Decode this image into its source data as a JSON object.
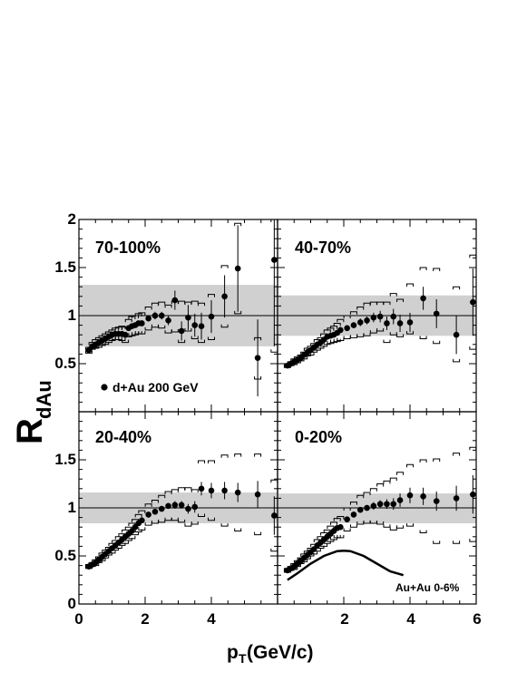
{
  "figure": {
    "ylabel_main": "R",
    "ylabel_sub": "dAu",
    "xlabel_main": "p",
    "xlabel_sub": "T",
    "xlabel_units": " (GeV/c)"
  },
  "legend": {
    "entry": "d+Au  200 GeV"
  },
  "annotation": {
    "auau": "Au+Au 0-6%"
  },
  "axes": {
    "left_top_ticks": [
      "0.5",
      "1",
      "1.5",
      "2"
    ],
    "left_bottom_ticks": [
      "0",
      "0.5",
      "1",
      "1.5"
    ],
    "x_left_ticks": [
      "0",
      "2",
      "4"
    ],
    "x_right_ticks": [
      "2",
      "4",
      "6"
    ]
  },
  "chart_data": [
    {
      "type": "scatter",
      "panel": "top-left",
      "label": "70-100%",
      "xlim": [
        0,
        6
      ],
      "ylim": [
        0,
        2
      ],
      "band": [
        0.68,
        1.32
      ],
      "reference_y": 1,
      "x": [
        0.3,
        0.4,
        0.5,
        0.6,
        0.7,
        0.8,
        0.9,
        1.0,
        1.1,
        1.2,
        1.3,
        1.4,
        1.5,
        1.6,
        1.7,
        1.8,
        1.9,
        2.1,
        2.3,
        2.5,
        2.7,
        2.9,
        3.1,
        3.3,
        3.5,
        3.7,
        4.0,
        4.4,
        4.8,
        5.4,
        5.9
      ],
      "y": [
        0.64,
        0.68,
        0.7,
        0.72,
        0.74,
        0.76,
        0.78,
        0.8,
        0.81,
        0.81,
        0.81,
        0.8,
        0.87,
        0.89,
        0.9,
        0.92,
        0.92,
        0.97,
        1.0,
        1.0,
        0.95,
        1.16,
        0.84,
        0.98,
        0.9,
        0.89,
        0.99,
        1.2,
        1.49,
        0.56,
        1.58
      ],
      "err": [
        0.01,
        0.01,
        0.01,
        0.01,
        0.01,
        0.01,
        0.01,
        0.01,
        0.01,
        0.02,
        0.02,
        0.02,
        0.02,
        0.02,
        0.02,
        0.02,
        0.03,
        0.03,
        0.04,
        0.04,
        0.05,
        0.1,
        0.1,
        0.13,
        0.12,
        0.14,
        0.17,
        0.22,
        0.45,
        0.4,
        0.9
      ],
      "sys_high": [
        0.67,
        0.72,
        0.75,
        0.77,
        0.79,
        0.81,
        0.83,
        0.85,
        0.87,
        0.88,
        0.89,
        0.88,
        0.96,
        0.99,
        1.0,
        1.02,
        1.03,
        1.09,
        1.13,
        1.14,
        1.11,
        1.15,
        1.15,
        1.14,
        1.15,
        1.13,
        1.22,
        1.52,
        1.96,
        0.77,
        2.0
      ],
      "sys_low": [
        0.61,
        0.65,
        0.66,
        0.67,
        0.69,
        0.7,
        0.72,
        0.74,
        0.75,
        0.75,
        0.74,
        0.72,
        0.78,
        0.79,
        0.8,
        0.81,
        0.81,
        0.85,
        0.88,
        0.87,
        0.82,
        0.83,
        0.72,
        0.84,
        0.76,
        0.72,
        0.75,
        0.88,
        1.02,
        0.34,
        0.62
      ]
    },
    {
      "type": "scatter",
      "panel": "top-right",
      "label": "40-70%",
      "xlim": [
        0,
        6
      ],
      "ylim": [
        0,
        2
      ],
      "band": [
        0.79,
        1.21
      ],
      "reference_y": 1,
      "x": [
        0.3,
        0.4,
        0.5,
        0.6,
        0.7,
        0.8,
        0.9,
        1.0,
        1.1,
        1.2,
        1.3,
        1.4,
        1.5,
        1.6,
        1.7,
        1.8,
        1.9,
        2.1,
        2.3,
        2.5,
        2.7,
        2.9,
        3.1,
        3.3,
        3.5,
        3.7,
        4.0,
        4.4,
        4.8,
        5.4,
        5.9
      ],
      "y": [
        0.48,
        0.5,
        0.52,
        0.54,
        0.56,
        0.59,
        0.62,
        0.64,
        0.67,
        0.7,
        0.72,
        0.75,
        0.78,
        0.79,
        0.8,
        0.82,
        0.85,
        0.87,
        0.9,
        0.93,
        0.95,
        0.98,
        0.99,
        0.92,
        0.99,
        0.92,
        0.93,
        1.18,
        1.02,
        0.8,
        1.14
      ],
      "err": [
        0.01,
        0.01,
        0.01,
        0.01,
        0.01,
        0.01,
        0.01,
        0.01,
        0.01,
        0.01,
        0.02,
        0.02,
        0.02,
        0.02,
        0.02,
        0.02,
        0.03,
        0.03,
        0.03,
        0.04,
        0.04,
        0.05,
        0.06,
        0.07,
        0.08,
        0.09,
        0.1,
        0.12,
        0.15,
        0.2,
        0.35
      ],
      "sys_high": [
        0.5,
        0.52,
        0.55,
        0.57,
        0.59,
        0.62,
        0.66,
        0.68,
        0.71,
        0.75,
        0.77,
        0.81,
        0.85,
        0.87,
        0.89,
        0.92,
        0.96,
        1.0,
        1.04,
        1.09,
        1.13,
        1.14,
        1.14,
        1.14,
        1.23,
        1.17,
        1.33,
        1.5,
        1.49,
        1.3,
        1.63
      ],
      "sys_low": [
        0.46,
        0.48,
        0.49,
        0.51,
        0.53,
        0.55,
        0.58,
        0.59,
        0.62,
        0.64,
        0.66,
        0.68,
        0.7,
        0.71,
        0.72,
        0.73,
        0.74,
        0.76,
        0.77,
        0.78,
        0.79,
        0.82,
        0.84,
        0.72,
        0.8,
        0.78,
        0.81,
        0.76,
        0.71,
        0.52,
        0.65
      ]
    },
    {
      "type": "scatter",
      "panel": "bottom-left",
      "label": "20-40%",
      "xlim": [
        0,
        6
      ],
      "ylim": [
        0,
        2
      ],
      "band": [
        0.84,
        1.16
      ],
      "reference_y": 1,
      "x": [
        0.3,
        0.4,
        0.5,
        0.6,
        0.7,
        0.8,
        0.9,
        1.0,
        1.1,
        1.2,
        1.3,
        1.4,
        1.5,
        1.6,
        1.7,
        1.8,
        1.9,
        2.1,
        2.3,
        2.5,
        2.7,
        2.9,
        3.1,
        3.3,
        3.5,
        3.7,
        4.0,
        4.4,
        4.8,
        5.4,
        5.9
      ],
      "y": [
        0.39,
        0.41,
        0.43,
        0.46,
        0.49,
        0.52,
        0.55,
        0.58,
        0.61,
        0.64,
        0.67,
        0.7,
        0.73,
        0.76,
        0.8,
        0.84,
        0.87,
        0.93,
        0.96,
        0.99,
        1.02,
        1.03,
        1.03,
        0.99,
        1.01,
        1.2,
        1.18,
        1.18,
        1.16,
        1.14,
        0.92
      ],
      "err": [
        0.01,
        0.01,
        0.01,
        0.01,
        0.01,
        0.01,
        0.01,
        0.01,
        0.01,
        0.01,
        0.01,
        0.02,
        0.02,
        0.02,
        0.02,
        0.02,
        0.02,
        0.02,
        0.03,
        0.03,
        0.03,
        0.04,
        0.04,
        0.05,
        0.06,
        0.07,
        0.08,
        0.09,
        0.1,
        0.14,
        0.2
      ],
      "sys_high": [
        0.41,
        0.43,
        0.46,
        0.49,
        0.53,
        0.56,
        0.59,
        0.63,
        0.66,
        0.7,
        0.73,
        0.77,
        0.8,
        0.84,
        0.88,
        0.93,
        0.97,
        1.04,
        1.08,
        1.13,
        1.17,
        1.19,
        1.21,
        1.21,
        1.19,
        1.49,
        1.49,
        1.55,
        1.56,
        1.56,
        1.29
      ],
      "sys_low": [
        0.37,
        0.39,
        0.4,
        0.43,
        0.45,
        0.48,
        0.51,
        0.53,
        0.56,
        0.58,
        0.61,
        0.63,
        0.66,
        0.68,
        0.72,
        0.75,
        0.77,
        0.82,
        0.84,
        0.85,
        0.87,
        0.87,
        0.85,
        0.81,
        0.83,
        0.91,
        0.87,
        0.81,
        0.76,
        0.72,
        0.55
      ]
    },
    {
      "type": "scatter",
      "panel": "bottom-right",
      "label": "0-20%",
      "xlim": [
        0,
        6
      ],
      "ylim": [
        0,
        2
      ],
      "band": [
        0.84,
        1.15
      ],
      "reference_y": 1,
      "x": [
        0.3,
        0.4,
        0.5,
        0.6,
        0.7,
        0.8,
        0.9,
        1.0,
        1.1,
        1.2,
        1.3,
        1.4,
        1.5,
        1.6,
        1.7,
        1.8,
        1.9,
        2.1,
        2.3,
        2.5,
        2.7,
        2.9,
        3.1,
        3.3,
        3.5,
        3.7,
        4.0,
        4.4,
        4.8,
        5.4,
        5.9
      ],
      "y": [
        0.35,
        0.37,
        0.39,
        0.42,
        0.45,
        0.48,
        0.51,
        0.54,
        0.57,
        0.61,
        0.64,
        0.67,
        0.7,
        0.73,
        0.76,
        0.79,
        0.8,
        0.88,
        0.93,
        0.98,
        1.0,
        1.02,
        1.04,
        1.04,
        1.04,
        1.08,
        1.13,
        1.12,
        1.07,
        1.1,
        1.14
      ],
      "err": [
        0.01,
        0.01,
        0.01,
        0.01,
        0.01,
        0.01,
        0.01,
        0.01,
        0.01,
        0.01,
        0.01,
        0.02,
        0.02,
        0.02,
        0.02,
        0.02,
        0.02,
        0.02,
        0.03,
        0.03,
        0.03,
        0.04,
        0.04,
        0.05,
        0.06,
        0.07,
        0.08,
        0.09,
        0.1,
        0.13,
        0.2
      ],
      "sys_high": [
        0.37,
        0.39,
        0.42,
        0.45,
        0.48,
        0.52,
        0.55,
        0.58,
        0.62,
        0.67,
        0.7,
        0.74,
        0.77,
        0.81,
        0.85,
        0.89,
        0.91,
        1.0,
        1.06,
        1.13,
        1.16,
        1.2,
        1.25,
        1.28,
        1.31,
        1.37,
        1.45,
        1.5,
        1.51,
        1.57,
        1.63
      ],
      "sys_low": [
        0.33,
        0.35,
        0.36,
        0.39,
        0.42,
        0.44,
        0.47,
        0.5,
        0.52,
        0.55,
        0.58,
        0.6,
        0.63,
        0.65,
        0.67,
        0.69,
        0.69,
        0.76,
        0.8,
        0.83,
        0.84,
        0.84,
        0.83,
        0.8,
        0.77,
        0.79,
        0.81,
        0.74,
        0.63,
        0.63,
        0.65
      ],
      "auau_curve": {
        "x": [
          0.3,
          0.6,
          1.0,
          1.4,
          1.8,
          2.0,
          2.2,
          2.6,
          3.0,
          3.4,
          3.8
        ],
        "y": [
          0.25,
          0.32,
          0.42,
          0.5,
          0.55,
          0.555,
          0.55,
          0.5,
          0.42,
          0.34,
          0.3
        ]
      }
    }
  ]
}
